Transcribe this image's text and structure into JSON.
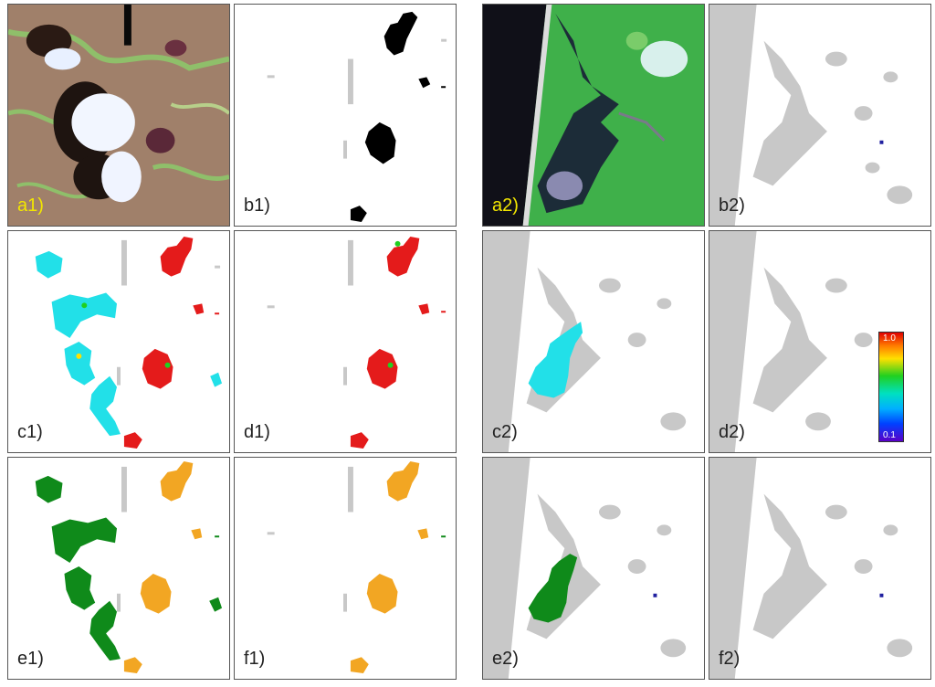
{
  "panels": {
    "a1": {
      "label": "a1)"
    },
    "b1": {
      "label": "b1)"
    },
    "c1": {
      "label": "c1)"
    },
    "d1": {
      "label": "d1)"
    },
    "e1": {
      "label": "e1)"
    },
    "f1": {
      "label": "f1)"
    },
    "a2": {
      "label": "a2)"
    },
    "b2": {
      "label": "b2)"
    },
    "c2": {
      "label": "c2)"
    },
    "d2": {
      "label": "d2)"
    },
    "e2": {
      "label": "e2)"
    },
    "f2": {
      "label": "f2)"
    }
  },
  "colorbar": {
    "max_label": "1.0",
    "min_label": "0.1"
  },
  "colors": {
    "mask_gray": "#c8c8c8",
    "burn_black": "#000000",
    "cyan": "#22e0e8",
    "red": "#e41b1b",
    "green": "#0f8a1a",
    "orange": "#f2a623",
    "label_yellow": "#f2e600"
  }
}
